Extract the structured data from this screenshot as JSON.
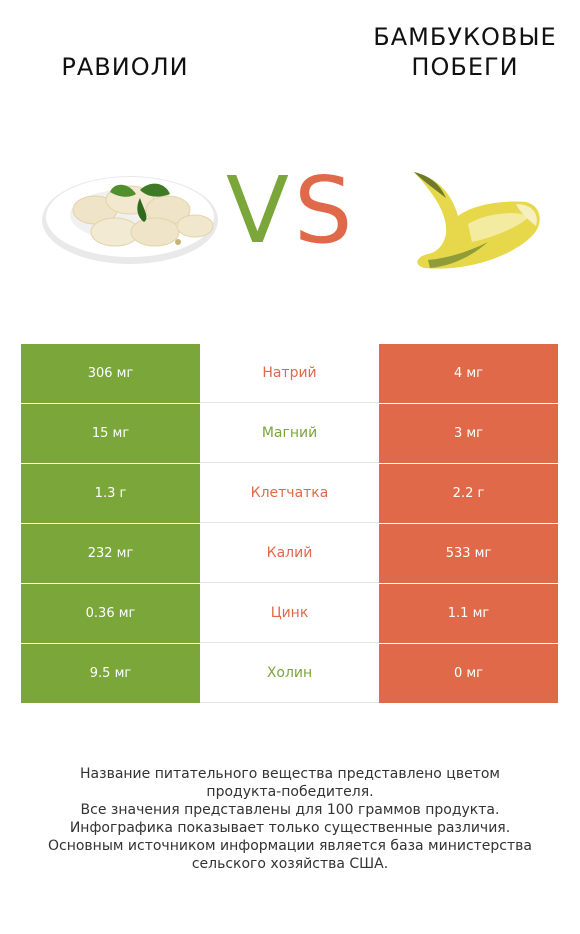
{
  "header": {
    "left_title": "РАВИОЛИ",
    "right_title": "БАМБУКОВЫЕ\nПОБЕГИ",
    "vs_v": "V",
    "vs_s": "S"
  },
  "colors": {
    "left": "#7aa63a",
    "right": "#e0694a"
  },
  "chart_data": {
    "type": "table",
    "columns": [
      "РАВИОЛИ",
      "",
      "БАМБУКОВЫЕ ПОБЕГИ"
    ],
    "rows": [
      {
        "nutrient": "Натрий",
        "left": "306 мг",
        "right": "4 мг",
        "winner": "right"
      },
      {
        "nutrient": "Магний",
        "left": "15 мг",
        "right": "3 мг",
        "winner": "left"
      },
      {
        "nutrient": "Клетчатка",
        "left": "1.3 г",
        "right": "2.2 г",
        "winner": "right"
      },
      {
        "nutrient": "Калий",
        "left": "232 мг",
        "right": "533 мг",
        "winner": "right"
      },
      {
        "nutrient": "Цинк",
        "left": "0.36 мг",
        "right": "1.1 мг",
        "winner": "right"
      },
      {
        "nutrient": "Холин",
        "left": "9.5 мг",
        "right": "0 мг",
        "winner": "left"
      }
    ]
  },
  "footer": {
    "lines": [
      "Название питательного вещества представлено цветом",
      "продукта-победителя.",
      "Все значения представлены для 100 граммов продукта.",
      "Инфографика показывает только существенные различия.",
      "Основным источником информации является база министерства",
      "сельского хозяйства США."
    ]
  }
}
